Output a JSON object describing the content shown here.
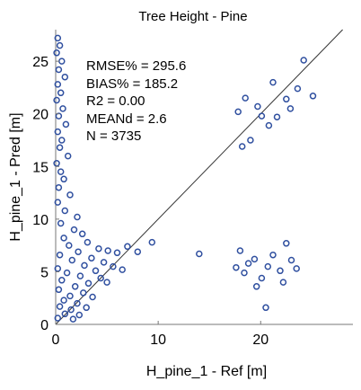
{
  "chart_data": {
    "type": "scatter",
    "title": "Tree Height - Pine",
    "xlabel": "H_pine_1 - Ref [m]",
    "ylabel": "H_pine_1 - Pred [m]",
    "xlim": [
      0,
      29
    ],
    "ylim": [
      0,
      28
    ],
    "xticks": [
      0,
      10,
      20
    ],
    "yticks": [
      0,
      5,
      10,
      15,
      20,
      25
    ],
    "grid": false,
    "marker_color": "#2f4f9f",
    "reference_line": "1:1",
    "stats": [
      "RMSE% = 295.6",
      "BIAS% = 185.2",
      "R2 = 0.00",
      "MEANd = 2.6",
      "N = 3735"
    ],
    "series": [
      {
        "values": [
          [
            0.2,
            27.2
          ],
          [
            0.4,
            26.5
          ],
          [
            0.1,
            25.8
          ],
          [
            0.6,
            25.0
          ],
          [
            0.3,
            24.2
          ],
          [
            0.9,
            23.5
          ],
          [
            0.2,
            22.8
          ],
          [
            0.5,
            22.0
          ],
          [
            0.1,
            21.3
          ],
          [
            0.7,
            20.5
          ],
          [
            0.3,
            19.8
          ],
          [
            1.0,
            19.0
          ],
          [
            0.2,
            18.3
          ],
          [
            0.6,
            17.5
          ],
          [
            0.4,
            16.8
          ],
          [
            1.2,
            16.0
          ],
          [
            0.1,
            15.3
          ],
          [
            0.5,
            14.5
          ],
          [
            0.8,
            13.8
          ],
          [
            0.3,
            13.0
          ],
          [
            1.4,
            12.3
          ],
          [
            0.2,
            11.6
          ],
          [
            0.9,
            10.8
          ],
          [
            2.1,
            10.2
          ],
          [
            0.5,
            9.6
          ],
          [
            1.8,
            9.0
          ],
          [
            2.6,
            8.6
          ],
          [
            0.8,
            8.2
          ],
          [
            3.1,
            7.8
          ],
          [
            1.3,
            7.5
          ],
          [
            4.2,
            7.2
          ],
          [
            2.2,
            6.9
          ],
          [
            5.1,
            7.0
          ],
          [
            0.4,
            6.6
          ],
          [
            3.5,
            6.3
          ],
          [
            6.0,
            6.8
          ],
          [
            1.6,
            6.1
          ],
          [
            4.7,
            5.9
          ],
          [
            2.8,
            5.6
          ],
          [
            7.0,
            7.4
          ],
          [
            0.2,
            5.3
          ],
          [
            3.9,
            5.1
          ],
          [
            5.6,
            5.5
          ],
          [
            1.1,
            4.9
          ],
          [
            2.4,
            4.6
          ],
          [
            4.4,
            4.4
          ],
          [
            0.6,
            4.2
          ],
          [
            3.2,
            3.9
          ],
          [
            1.9,
            3.6
          ],
          [
            5.0,
            4.0
          ],
          [
            0.3,
            3.3
          ],
          [
            2.7,
            3.0
          ],
          [
            1.4,
            2.7
          ],
          [
            3.6,
            2.6
          ],
          [
            0.8,
            2.3
          ],
          [
            2.1,
            2.0
          ],
          [
            0.4,
            1.7
          ],
          [
            1.5,
            1.4
          ],
          [
            3.0,
            1.6
          ],
          [
            0.9,
            1.0
          ],
          [
            2.3,
            0.9
          ],
          [
            0.2,
            0.6
          ],
          [
            1.7,
            0.5
          ],
          [
            6.5,
            5.2
          ],
          [
            8.0,
            6.9
          ],
          [
            9.4,
            7.8
          ],
          [
            14.0,
            6.7
          ],
          [
            17.8,
            20.2
          ],
          [
            18.5,
            21.5
          ],
          [
            19.0,
            17.5
          ],
          [
            18.2,
            16.9
          ],
          [
            20.1,
            19.8
          ],
          [
            20.8,
            18.9
          ],
          [
            21.2,
            23.0
          ],
          [
            22.5,
            21.4
          ],
          [
            23.6,
            22.4
          ],
          [
            24.2,
            25.1
          ],
          [
            25.1,
            21.7
          ],
          [
            19.7,
            20.7
          ],
          [
            21.6,
            19.7
          ],
          [
            22.9,
            20.5
          ],
          [
            17.6,
            5.4
          ],
          [
            18.0,
            7.0
          ],
          [
            18.8,
            5.8
          ],
          [
            19.4,
            6.2
          ],
          [
            20.1,
            4.4
          ],
          [
            20.7,
            5.5
          ],
          [
            21.2,
            6.6
          ],
          [
            21.9,
            5.1
          ],
          [
            22.5,
            7.7
          ],
          [
            23.0,
            6.1
          ],
          [
            23.5,
            5.3
          ],
          [
            19.6,
            3.6
          ],
          [
            20.5,
            1.6
          ],
          [
            22.2,
            4.0
          ],
          [
            18.4,
            4.9
          ]
        ]
      }
    ]
  }
}
